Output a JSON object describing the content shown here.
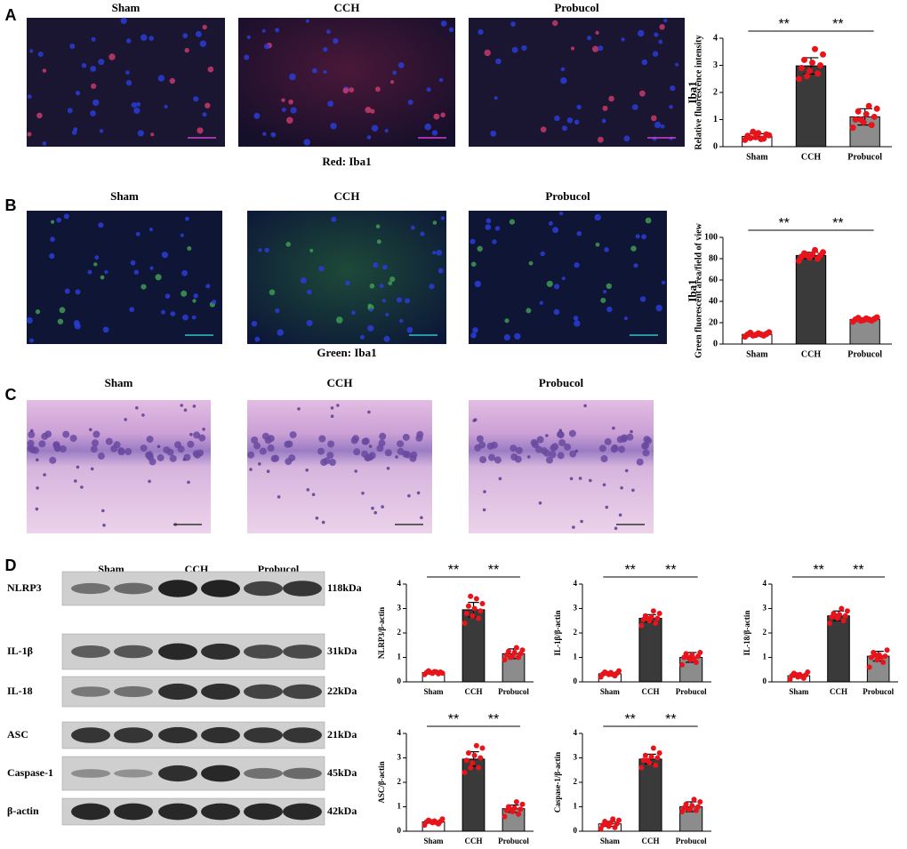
{
  "panels": {
    "A": {
      "letter": "A",
      "images": [
        "Sham",
        "CCH",
        "Probucol"
      ],
      "caption": "Red: Iba1"
    },
    "B": {
      "letter": "B",
      "images": [
        "Sham",
        "CCH",
        "Probucol"
      ],
      "caption": "Green: Iba1"
    },
    "C": {
      "letter": "C",
      "images": [
        "Sham",
        "CCH",
        "Probucol"
      ]
    }
  },
  "blot": {
    "letter": "D",
    "groups": [
      "Sham",
      "CCH",
      "Probucol"
    ],
    "rows": [
      {
        "name": "NLRP3",
        "size": "118kDa"
      },
      {
        "name": "IL-1β",
        "size": "31kDa"
      },
      {
        "name": "IL-18",
        "size": "22kDa"
      },
      {
        "name": "ASC",
        "size": "21kDa"
      },
      {
        "name": "Caspase-1",
        "size": "45kDa"
      },
      {
        "name": "β-actin",
        "size": "42kDa"
      }
    ]
  },
  "chart_data": [
    {
      "type": "bar",
      "title": "Iba1",
      "ylabel": "Relative fluorescence intensity",
      "categories": [
        "Sham",
        "CCH",
        "Probucol"
      ],
      "values": [
        0.38,
        2.98,
        1.1
      ],
      "errors": [
        0.1,
        0.3,
        0.3
      ],
      "points": [
        [
          0.25,
          0.3,
          0.35,
          0.4,
          0.45,
          0.5,
          0.32,
          0.42,
          0.28,
          0.55
        ],
        [
          2.5,
          2.7,
          2.8,
          2.9,
          3.0,
          3.1,
          3.2,
          3.4,
          3.6,
          2.6
        ],
        [
          0.7,
          0.8,
          0.9,
          1.0,
          1.1,
          1.2,
          1.3,
          1.4,
          1.5,
          1.0
        ]
      ],
      "colors": [
        "#ffffff",
        "#3a3a3a",
        "#8c8c8c"
      ],
      "point_color": "#e8141b",
      "ylim": [
        0,
        4
      ],
      "yticks": [
        0,
        1,
        2,
        3,
        4
      ],
      "annotations": [
        "**",
        "**"
      ]
    },
    {
      "type": "bar",
      "title": "Iba1",
      "ylabel": "Green fluorescent area/field of view",
      "categories": [
        "Sham",
        "CCH",
        "Probucol"
      ],
      "values": [
        9,
        83,
        23
      ],
      "errors": [
        1.5,
        3,
        1.5
      ],
      "points": [
        [
          7,
          8,
          8.5,
          9,
          9.5,
          10,
          10.5,
          11,
          9,
          8
        ],
        [
          78,
          80,
          81,
          82,
          83,
          84,
          85,
          86,
          88,
          83
        ],
        [
          21,
          22,
          22.5,
          23,
          23.5,
          24,
          24.5,
          25,
          23,
          22
        ]
      ],
      "colors": [
        "#ffffff",
        "#3a3a3a",
        "#8c8c8c"
      ],
      "point_color": "#e8141b",
      "ylim": [
        0,
        100
      ],
      "yticks": [
        0,
        20,
        40,
        60,
        80,
        100
      ],
      "annotations": [
        "**",
        "**"
      ]
    },
    {
      "type": "bar",
      "ylabel": "NLRP3/β-actin",
      "categories": [
        "Sham",
        "CCH",
        "Probucol"
      ],
      "values": [
        0.38,
        2.95,
        1.15
      ],
      "errors": [
        0.05,
        0.3,
        0.2
      ],
      "points": [
        [
          0.3,
          0.33,
          0.35,
          0.38,
          0.4,
          0.42,
          0.45,
          0.36,
          0.4,
          0.38
        ],
        [
          2.4,
          2.6,
          2.7,
          2.8,
          2.9,
          3.0,
          3.1,
          3.2,
          3.4,
          3.5
        ],
        [
          0.9,
          1.0,
          1.05,
          1.1,
          1.15,
          1.2,
          1.25,
          1.3,
          1.4,
          1.0
        ]
      ],
      "colors": [
        "#ffffff",
        "#3a3a3a",
        "#8c8c8c"
      ],
      "point_color": "#e8141b",
      "ylim": [
        0,
        4
      ],
      "yticks": [
        0,
        1,
        2,
        3,
        4
      ],
      "annotations": [
        "**",
        "**"
      ]
    },
    {
      "type": "bar",
      "ylabel": "IL-1β/β-actin",
      "categories": [
        "Sham",
        "CCH",
        "Probucol"
      ],
      "values": [
        0.33,
        2.6,
        1.0
      ],
      "errors": [
        0.05,
        0.15,
        0.2
      ],
      "points": [
        [
          0.2,
          0.25,
          0.3,
          0.32,
          0.35,
          0.38,
          0.4,
          0.45,
          0.3,
          0.35
        ],
        [
          2.3,
          2.4,
          2.5,
          2.55,
          2.6,
          2.65,
          2.7,
          2.8,
          2.9,
          2.6
        ],
        [
          0.7,
          0.8,
          0.9,
          1.0,
          1.05,
          1.1,
          1.15,
          1.2,
          0.95,
          1.0
        ]
      ],
      "colors": [
        "#ffffff",
        "#3a3a3a",
        "#8c8c8c"
      ],
      "point_color": "#e8141b",
      "ylim": [
        0,
        4
      ],
      "yticks": [
        0,
        1,
        2,
        3,
        4
      ],
      "annotations": [
        "**",
        "**"
      ]
    },
    {
      "type": "bar",
      "ylabel": "IL-18/β-actin",
      "categories": [
        "Sham",
        "CCH",
        "Probucol"
      ],
      "values": [
        0.25,
        2.7,
        1.05
      ],
      "errors": [
        0.05,
        0.2,
        0.2
      ],
      "points": [
        [
          0.1,
          0.15,
          0.2,
          0.25,
          0.28,
          0.3,
          0.35,
          0.4,
          0.22,
          0.3
        ],
        [
          2.4,
          2.5,
          2.6,
          2.65,
          2.7,
          2.75,
          2.8,
          2.9,
          3.0,
          2.7
        ],
        [
          0.6,
          0.8,
          0.9,
          1.0,
          1.05,
          1.1,
          1.2,
          1.3,
          1.0,
          1.1
        ]
      ],
      "colors": [
        "#ffffff",
        "#3a3a3a",
        "#8c8c8c"
      ],
      "point_color": "#e8141b",
      "ylim": [
        0,
        4
      ],
      "yticks": [
        0,
        1,
        2,
        3,
        4
      ],
      "annotations": [
        "**",
        "**"
      ]
    },
    {
      "type": "bar",
      "ylabel": "ASC/β-actin",
      "categories": [
        "Sham",
        "CCH",
        "Probucol"
      ],
      "values": [
        0.38,
        2.95,
        0.92
      ],
      "errors": [
        0.05,
        0.3,
        0.15
      ],
      "points": [
        [
          0.25,
          0.3,
          0.35,
          0.38,
          0.4,
          0.42,
          0.45,
          0.5,
          0.35,
          0.4
        ],
        [
          2.4,
          2.6,
          2.8,
          2.9,
          3.0,
          3.1,
          3.2,
          3.4,
          3.5,
          2.6
        ],
        [
          0.6,
          0.7,
          0.8,
          0.85,
          0.9,
          0.95,
          1.0,
          1.1,
          1.2,
          0.9
        ]
      ],
      "colors": [
        "#ffffff",
        "#3a3a3a",
        "#8c8c8c"
      ],
      "point_color": "#e8141b",
      "ylim": [
        0,
        4
      ],
      "yticks": [
        0,
        1,
        2,
        3,
        4
      ],
      "annotations": [
        "**",
        "**"
      ]
    },
    {
      "type": "bar",
      "ylabel": "Caspase-1/β-actin",
      "categories": [
        "Sham",
        "CCH",
        "Probucol"
      ],
      "values": [
        0.3,
        2.95,
        1.0
      ],
      "errors": [
        0.1,
        0.2,
        0.2
      ],
      "points": [
        [
          0.1,
          0.15,
          0.2,
          0.25,
          0.3,
          0.35,
          0.4,
          0.45,
          0.5,
          0.3
        ],
        [
          2.6,
          2.7,
          2.8,
          2.9,
          3.0,
          3.05,
          3.1,
          3.2,
          3.4,
          2.9
        ],
        [
          0.8,
          0.85,
          0.9,
          0.95,
          1.0,
          1.05,
          1.1,
          1.2,
          1.3,
          0.9
        ]
      ],
      "colors": [
        "#ffffff",
        "#3a3a3a",
        "#8c8c8c"
      ],
      "point_color": "#e8141b",
      "ylim": [
        0,
        4
      ],
      "yticks": [
        0,
        1,
        2,
        3,
        4
      ],
      "annotations": [
        "**",
        "**"
      ]
    }
  ]
}
